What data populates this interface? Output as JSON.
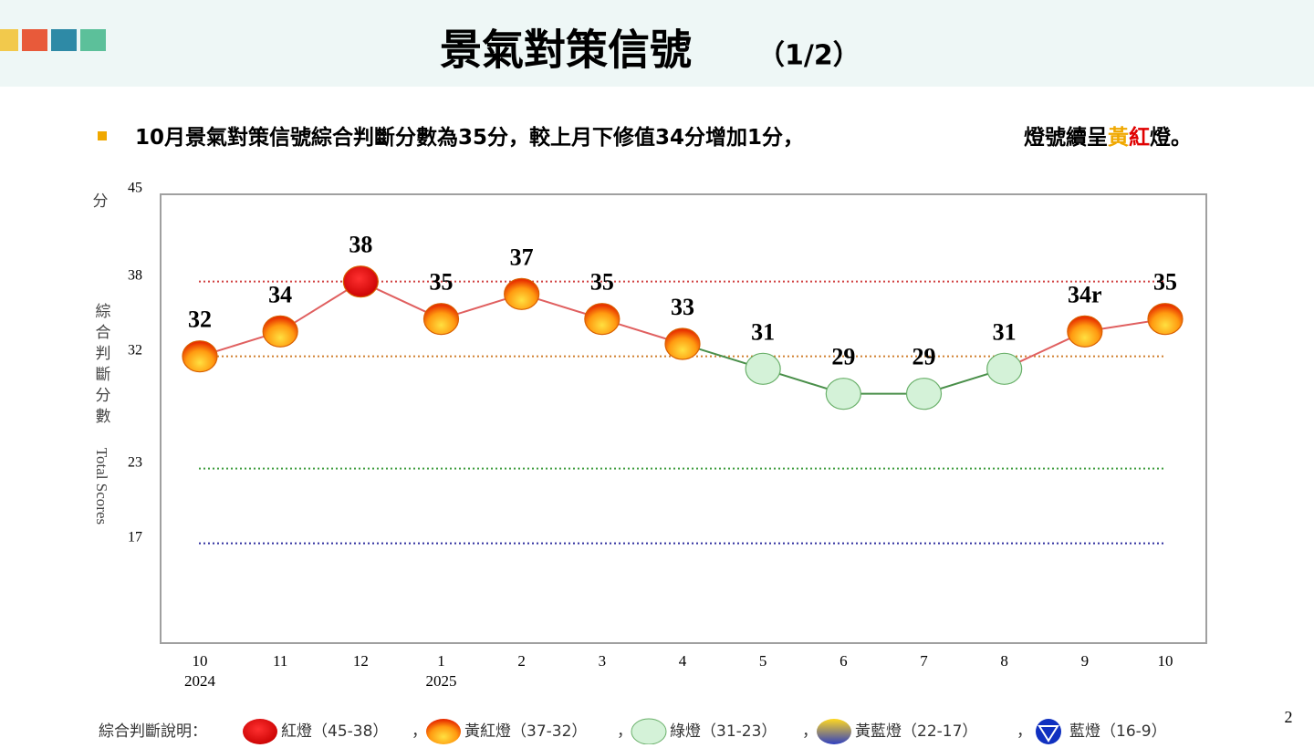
{
  "header": {
    "title": "景氣對策信號",
    "subtitle": "（1/2）"
  },
  "bullet": {
    "text": "10月景氣對策信號綜合判斷分數為35分，較上月下修值34分增加1分，",
    "text2": "燈號續呈",
    "highlight1": "黃",
    "highlight2": "紅",
    "text3": "燈。"
  },
  "chart_data": {
    "type": "line",
    "y_unit": "分",
    "y_label": "綜合判斷分數",
    "y_label_en": "Total Scores",
    "categories": [
      "10",
      "11",
      "12",
      "1",
      "2",
      "3",
      "4",
      "5",
      "6",
      "7",
      "8",
      "9",
      "10"
    ],
    "years": [
      "2024",
      null,
      null,
      "2025",
      null,
      null,
      null,
      null,
      null,
      null,
      null,
      null,
      null
    ],
    "values": [
      32,
      34,
      38,
      35,
      37,
      35,
      33,
      31,
      29,
      29,
      31,
      34,
      35
    ],
    "value_labels": [
      "32",
      "34",
      "38",
      "35",
      "37",
      "35",
      "33",
      "31",
      "29",
      "29",
      "31",
      "34r",
      "35"
    ],
    "marker_colors": [
      "#ff8c00",
      "#ff8c00",
      "#e00000",
      "#ff8c00",
      "#ff8c00",
      "#ff8c00",
      "#ff8c00",
      "#d4f2d8",
      "#d4f2d8",
      "#d4f2d8",
      "#d4f2d8",
      "#ff8c00",
      "#ff8c00"
    ],
    "ylim": [
      9,
      45
    ],
    "yticks": [
      45,
      38,
      32,
      23,
      17
    ],
    "grid": false,
    "reference_lines": [
      {
        "value": 38,
        "color": "#d04040"
      },
      {
        "value": 32,
        "color": "#d08030"
      },
      {
        "value": 23,
        "color": "#3a9a3a"
      },
      {
        "value": 17,
        "color": "#3030a0"
      }
    ],
    "legend_title": "綜合判斷說明：",
    "legend": [
      {
        "name": "紅燈",
        "range": "（45-38）",
        "color": "#e00000"
      },
      {
        "name": "黃紅燈",
        "range": "（37-32）",
        "color": "#ff8c00"
      },
      {
        "name": "綠燈",
        "range": "（31-23）",
        "color": "#d4f2d8"
      },
      {
        "name": "黃藍燈",
        "range": "（22-17）",
        "color": "#6070d0"
      },
      {
        "name": "藍燈",
        "range": "（16-9）",
        "color": "#1030c0"
      }
    ]
  },
  "page_number": "2"
}
